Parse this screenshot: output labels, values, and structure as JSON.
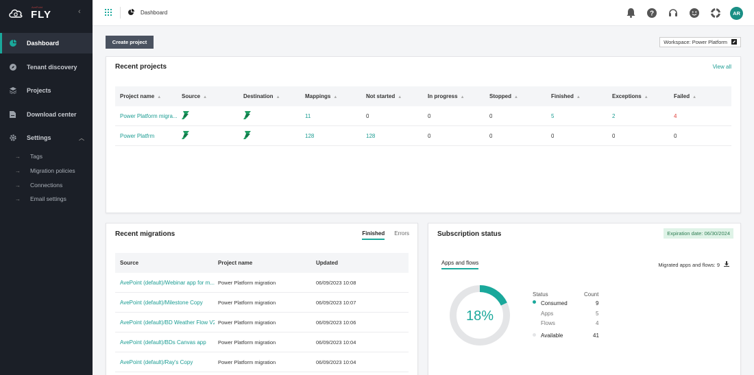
{
  "brand": {
    "name": "FLY",
    "small": "AvePoint"
  },
  "sidebar": {
    "items": [
      {
        "label": "Dashboard",
        "icon": "dashboard-icon",
        "active": true
      },
      {
        "label": "Tenant discovery",
        "icon": "compass-icon"
      },
      {
        "label": "Projects",
        "icon": "layers-icon"
      },
      {
        "label": "Download center",
        "icon": "file-download-icon"
      },
      {
        "label": "Settings",
        "icon": "gear-icon"
      }
    ],
    "settings_sub": [
      "Tags",
      "Migration policies",
      "Connections",
      "Email settings"
    ]
  },
  "topbar": {
    "breadcrumb": "Dashboard",
    "avatar": "AR"
  },
  "toolbar": {
    "create_label": "Create project",
    "workspace": "Workspace: Power Platform"
  },
  "recent_projects": {
    "title": "Recent projects",
    "view_all": "View all",
    "columns": [
      "Project name",
      "Source",
      "Destination",
      "Mappings",
      "Not started",
      "In progress",
      "Stopped",
      "Finished",
      "Exceptions",
      "Failed"
    ],
    "rows": [
      {
        "name": "Power Platform migra...",
        "mappings": "11",
        "not_started": "0",
        "in_progress": "0",
        "stopped": "0",
        "finished": "5",
        "exceptions": "2",
        "failed": "4"
      },
      {
        "name": "Power Platfrm",
        "mappings": "128",
        "not_started": "128",
        "in_progress": "0",
        "stopped": "0",
        "finished": "0",
        "exceptions": "0",
        "failed": "0"
      }
    ]
  },
  "recent_migrations": {
    "title": "Recent migrations",
    "tabs": [
      "Finished",
      "Errors"
    ],
    "columns": [
      "Source",
      "Project name",
      "Updated"
    ],
    "rows": [
      {
        "source": "AvePoint (default)/Webinar app for m...",
        "project": "Power Platform migration",
        "updated": "06/09/2023 10:08"
      },
      {
        "source": "AvePoint (default)/Milestone Copy",
        "project": "Power Platform migration",
        "updated": "06/09/2023 10:07"
      },
      {
        "source": "AvePoint (default)/BD Weather Flow V2",
        "project": "Power Platform migration",
        "updated": "06/09/2023 10:06"
      },
      {
        "source": "AvePoint (default)/BDs Canvas app",
        "project": "Power Platform migration",
        "updated": "06/09/2023 10:04"
      },
      {
        "source": "AvePoint (default)/Ray's Copy",
        "project": "Power Platform migration",
        "updated": "06/09/2023 10:04"
      }
    ]
  },
  "subscription": {
    "title": "Subscription status",
    "expiry": "Expiration date: 06/30/2024",
    "tab": "Apps and flows",
    "migrated": "Migrated apps and flows: 9",
    "percent_label": "18%",
    "consumed_fraction": 0.18,
    "status_header": "Status",
    "count_header": "Count",
    "rows": [
      {
        "label": "Consumed",
        "count": "9"
      },
      {
        "label": "Apps",
        "count": "5"
      },
      {
        "label": "Flows",
        "count": "4"
      },
      {
        "label": "Available",
        "count": "41"
      }
    ],
    "colors": {
      "consumed": "#1aa89b",
      "available": "#e4e5e7"
    }
  }
}
